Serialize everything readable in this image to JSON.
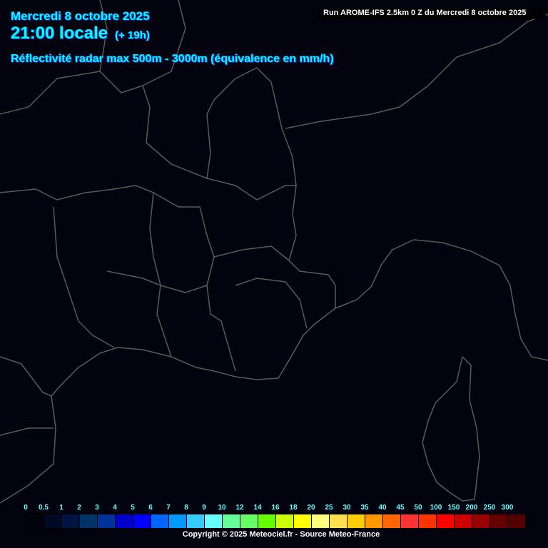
{
  "header": {
    "date": "Mercredi 8 octobre 2025",
    "time": "21:00 locale",
    "lead": "(+ 19h)",
    "parameter": "Réflectivité radar max 500m - 3000m (équivalence en mm/h)",
    "run": "Run AROME-IFS 2.5km 0 Z du Mercredi 8 octobre 2025"
  },
  "legend": {
    "labels": [
      "0",
      "0.5",
      "1",
      "2",
      "3",
      "4",
      "5",
      "6",
      "7",
      "8",
      "9",
      "10",
      "12",
      "14",
      "16",
      "18",
      "20",
      "25",
      "30",
      "35",
      "40",
      "45",
      "50",
      "100",
      "150",
      "200",
      "250",
      "300"
    ],
    "colors": [
      "#03030f",
      "#000a25",
      "#001444",
      "#003366",
      "#003399",
      "#0000cc",
      "#0000ff",
      "#0066ff",
      "#0099ff",
      "#33ccff",
      "#66ffff",
      "#66ff99",
      "#66ff66",
      "#66ff00",
      "#ccff00",
      "#ffff00",
      "#ffff80",
      "#ffe04c",
      "#ffcc00",
      "#ff9900",
      "#ff6600",
      "#ff3333",
      "#ff3300",
      "#ff0000",
      "#cc0000",
      "#990000",
      "#660000",
      "#550000"
    ]
  },
  "footer": {
    "copyright": "Copyright © 2025 Meteociel.fr - Source Meteo-France"
  },
  "colors": {
    "background": "#03030f",
    "borders": "#555555",
    "title_text": "#00ffff"
  }
}
